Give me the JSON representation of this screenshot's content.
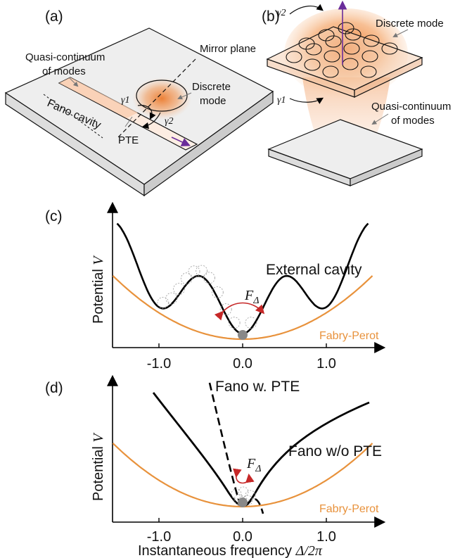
{
  "panel_a": {
    "label": "(a)",
    "quasi_continuum_line1": "Quasi-continuum",
    "quasi_continuum_line2": "of modes",
    "mirror_plane": "Mirror plane",
    "discrete_mode_line1": "Discrete",
    "discrete_mode_line2": "mode",
    "fano_cavity": "Fano cavity",
    "pte": "PTE",
    "gamma1": "γ1",
    "gamma2": "γ2"
  },
  "panel_b": {
    "label": "(b)",
    "gamma1": "γ1",
    "gamma2": "γ2",
    "discrete_mode": "Discrete mode",
    "quasi_continuum_line1": "Quasi-continuum",
    "quasi_continuum_line2": "of modes"
  },
  "colors": {
    "curve_black": "#000000",
    "fabry_perot_orange": "#e8923c",
    "force_arrow_red": "#c62828",
    "mode_glow": "#ef8a3c",
    "output_arrow_purple": "#6a2c9a"
  },
  "chart_data": [
    {
      "panel": "(c)",
      "type": "line",
      "ylabel": "Potential V",
      "x_ticks": [
        "-1.0",
        "0.0",
        "1.0"
      ],
      "xlim": [
        -1.5,
        1.5
      ],
      "series": [
        {
          "name": "External cavity",
          "style": "solid black",
          "description_points": [
            [
              -1.5,
              0.42
            ],
            [
              -1.0,
              0.13
            ],
            [
              -0.55,
              0.3
            ],
            [
              0.0,
              0.02
            ],
            [
              0.55,
              0.3
            ],
            [
              1.0,
              0.13
            ],
            [
              1.5,
              0.42
            ]
          ]
        },
        {
          "name": "Fabry-Perot",
          "style": "solid orange",
          "description_points": [
            [
              -1.5,
              0.3
            ],
            [
              0.0,
              0.0
            ],
            [
              1.5,
              0.3
            ]
          ]
        }
      ],
      "annotations": [
        "F_Δ"
      ]
    },
    {
      "panel": "(d)",
      "type": "line",
      "ylabel": "Potential V",
      "xlabel": "Instantaneous frequency Δ/2π",
      "x_ticks": [
        "-1.0",
        "0.0",
        "1.0"
      ],
      "xlim": [
        -1.5,
        1.5
      ],
      "series": [
        {
          "name": "Fano w/o PTE",
          "style": "solid black"
        },
        {
          "name": "Fano w. PTE",
          "style": "dashed black"
        },
        {
          "name": "Fabry-Perot",
          "style": "solid orange"
        }
      ],
      "annotations": [
        "F_Δ"
      ]
    }
  ],
  "panel_c": {
    "label": "(c)",
    "ylabel_text": "Potential ",
    "ylabel_var": "V",
    "curve_label": "External cavity",
    "fp_label": "Fabry-Perot",
    "force_label": "F",
    "force_sub": "Δ",
    "tick_m1": "-1.0",
    "tick_0": "0.0",
    "tick_1": "1.0"
  },
  "panel_d": {
    "label": "(d)",
    "ylabel_text": "Potential ",
    "ylabel_var": "V",
    "pte_label": "Fano w. PTE",
    "nopte_label": "Fano w/o PTE",
    "fp_label": "Fabry-Perot",
    "force_label": "F",
    "force_sub": "Δ",
    "tick_m1": "-1.0",
    "tick_0": "0.0",
    "tick_1": "1.0",
    "xlabel_text": "Instantaneous frequency ",
    "xlabel_var": "Δ/2π"
  }
}
